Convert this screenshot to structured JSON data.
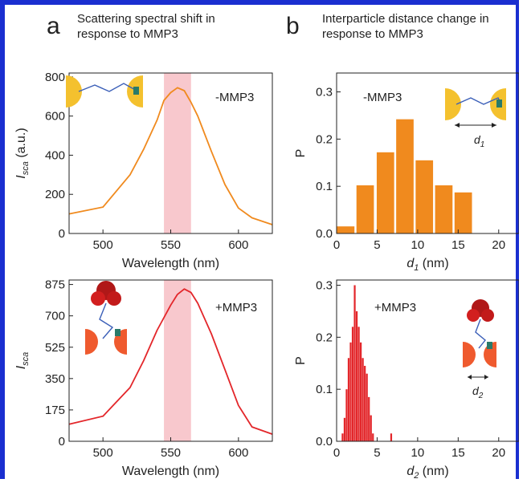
{
  "panels": {
    "a": {
      "letter": "a",
      "heading_line1": "Scattering spectral shift in",
      "heading_line2": "response to MMP3"
    },
    "b": {
      "letter": "b",
      "heading_line1": "Interparticle distance change in",
      "heading_line2": "response to MMP3"
    }
  },
  "colors": {
    "orange": "#f08a1e",
    "red": "#e3262a",
    "band": "#f6b6bc",
    "frame": "#1a2fd0",
    "gold": "#f4c12e"
  },
  "chart_data": [
    {
      "id": "a-top",
      "type": "line",
      "ylabel_main": "I",
      "ylabel_sub": "sca",
      "ylabel_unit": " (a.u.)",
      "xlabel": "Wavelength (nm)",
      "annotation": "-MMP3",
      "xlim": [
        475,
        625
      ],
      "ylim": [
        0,
        820
      ],
      "xticks": [
        500,
        550,
        600
      ],
      "yticks": [
        0,
        200,
        400,
        600,
        800
      ],
      "highlight_band": [
        545,
        565
      ],
      "series": [
        {
          "color": "#f08a1e",
          "x": [
            475,
            500,
            520,
            530,
            540,
            545,
            550,
            555,
            560,
            565,
            570,
            580,
            590,
            600,
            610,
            625
          ],
          "y": [
            100,
            135,
            300,
            430,
            580,
            680,
            720,
            745,
            730,
            670,
            600,
            420,
            250,
            130,
            80,
            45
          ]
        }
      ]
    },
    {
      "id": "a-bottom",
      "type": "line",
      "ylabel_main": "I",
      "ylabel_sub": "sca",
      "ylabel_unit": "",
      "xlabel": "Wavelength (nm)",
      "annotation": "+MMP3",
      "xlim": [
        475,
        625
      ],
      "ylim": [
        0,
        900
      ],
      "xticks": [
        500,
        550,
        600
      ],
      "yticks": [
        0,
        175,
        350,
        525,
        700,
        875
      ],
      "highlight_band": [
        545,
        565
      ],
      "series": [
        {
          "color": "#e3262a",
          "x": [
            475,
            500,
            520,
            530,
            540,
            550,
            555,
            560,
            565,
            570,
            580,
            590,
            600,
            610,
            625
          ],
          "y": [
            95,
            140,
            300,
            450,
            620,
            760,
            820,
            850,
            830,
            770,
            600,
            400,
            200,
            80,
            40
          ]
        }
      ]
    },
    {
      "id": "b-top",
      "type": "bar",
      "ylabel": "P",
      "xlabel_main": "d",
      "xlabel_sub": "1",
      "xlabel_unit": " (nm)",
      "annotation": "-MMP3",
      "schematic_label_main": "d",
      "schematic_label_sub": "1",
      "xlim": [
        0,
        22.5
      ],
      "ylim": [
        0,
        0.34
      ],
      "xticks": [
        0,
        5,
        10,
        15,
        20
      ],
      "yticks": [
        0.0,
        0.1,
        0.2,
        0.3
      ],
      "bar_width": 2.3,
      "color": "#f08a1e",
      "x": [
        1.2,
        3.6,
        6.1,
        8.5,
        10.9,
        13.3,
        15.7
      ],
      "values": [
        0.015,
        0.102,
        0.172,
        0.242,
        0.155,
        0.102,
        0.087
      ]
    },
    {
      "id": "b-bottom",
      "type": "bar",
      "ylabel": "P",
      "xlabel_main": "d",
      "xlabel_sub": "2",
      "xlabel_unit": " (nm)",
      "annotation": "+MMP3",
      "schematic_label_main": "d",
      "schematic_label_sub": "2",
      "xlim": [
        0,
        22.5
      ],
      "ylim": [
        0,
        0.31
      ],
      "xticks": [
        0,
        5,
        10,
        15,
        20
      ],
      "yticks": [
        0.0,
        0.1,
        0.2,
        0.3
      ],
      "bar_width": 0.25,
      "color": "#e3262a",
      "x": [
        0.75,
        1.0,
        1.25,
        1.5,
        1.75,
        2.0,
        2.25,
        2.5,
        2.75,
        3.0,
        3.25,
        3.5,
        3.75,
        4.0,
        4.25,
        4.5,
        6.75
      ],
      "values": [
        0.015,
        0.045,
        0.1,
        0.16,
        0.19,
        0.22,
        0.3,
        0.25,
        0.22,
        0.19,
        0.16,
        0.145,
        0.13,
        0.085,
        0.05,
        0.015,
        0.015
      ]
    }
  ]
}
